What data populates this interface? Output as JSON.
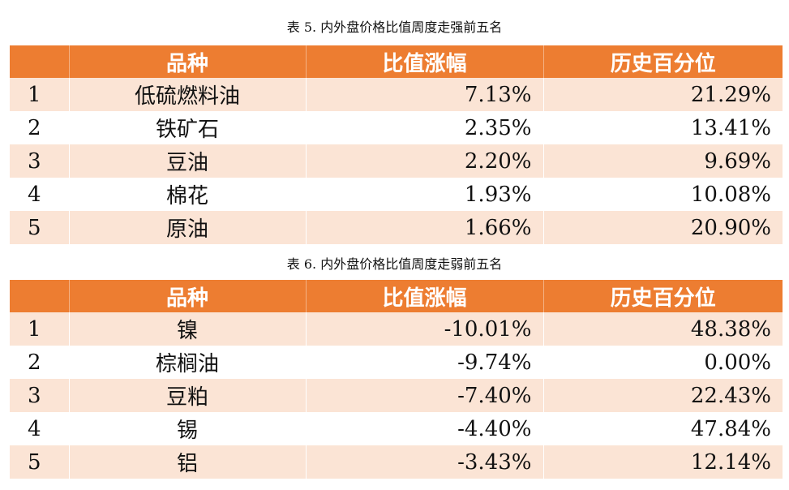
{
  "tables": [
    {
      "caption": "表 5. 内外盘价格比值周度走强前五名",
      "headers": [
        "",
        "品种",
        "比值涨幅",
        "历史百分位"
      ],
      "rows": [
        {
          "rank": "1",
          "name": "低硫燃料油",
          "change": "7.13%",
          "percentile": "21.29%"
        },
        {
          "rank": "2",
          "name": "铁矿石",
          "change": "2.35%",
          "percentile": "13.41%"
        },
        {
          "rank": "3",
          "name": "豆油",
          "change": "2.20%",
          "percentile": "9.69%"
        },
        {
          "rank": "4",
          "name": "棉花",
          "change": "1.93%",
          "percentile": "10.08%"
        },
        {
          "rank": "5",
          "name": "原油",
          "change": "1.66%",
          "percentile": "20.90%"
        }
      ]
    },
    {
      "caption": "表 6. 内外盘价格比值周度走弱前五名",
      "headers": [
        "",
        "品种",
        "比值涨幅",
        "历史百分位"
      ],
      "rows": [
        {
          "rank": "1",
          "name": "镍",
          "change": "-10.01%",
          "percentile": "48.38%"
        },
        {
          "rank": "2",
          "name": "棕榈油",
          "change": "-9.74%",
          "percentile": "0.00%"
        },
        {
          "rank": "3",
          "name": "豆粕",
          "change": "-7.40%",
          "percentile": "22.43%"
        },
        {
          "rank": "4",
          "name": "锡",
          "change": "-4.40%",
          "percentile": "47.84%"
        },
        {
          "rank": "5",
          "name": "铝",
          "change": "-3.43%",
          "percentile": "12.14%"
        }
      ]
    }
  ]
}
